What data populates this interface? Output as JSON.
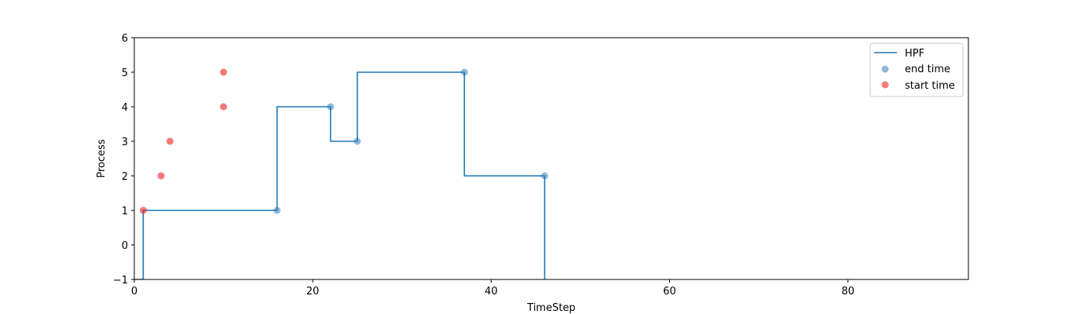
{
  "chart_data": {
    "type": "line",
    "xlabel": "TimeStep",
    "ylabel": "Process",
    "xlim": [
      0,
      93.5
    ],
    "ylim": [
      -1,
      6
    ],
    "xticks": [
      0,
      20,
      40,
      60,
      80
    ],
    "yticks": [
      -1,
      0,
      1,
      2,
      3,
      4,
      5,
      6
    ],
    "xtick_labels": [
      "0",
      "20",
      "40",
      "60",
      "80"
    ],
    "ytick_labels": [
      "−1",
      "0",
      "1",
      "2",
      "3",
      "4",
      "5",
      "6"
    ],
    "legend_position": "top-right",
    "grid": false,
    "series": [
      {
        "name": "HPF",
        "kind": "step",
        "color": "#1f77b4",
        "x": [
          0,
          1,
          1,
          16,
          16,
          22,
          22,
          25,
          25,
          37,
          37,
          46,
          46
        ],
        "y": [
          -1,
          -1,
          1,
          1,
          4,
          4,
          3,
          3,
          5,
          5,
          2,
          2,
          -1
        ]
      },
      {
        "name": "end time",
        "kind": "scatter",
        "color": "#1f77b4",
        "x": [
          16,
          22,
          25,
          37,
          46
        ],
        "y": [
          1,
          4,
          3,
          5,
          2
        ]
      },
      {
        "name": "start time",
        "kind": "scatter",
        "color": "#ee2222",
        "x": [
          1,
          3,
          4,
          10,
          10
        ],
        "y": [
          1,
          2,
          3,
          4,
          5
        ]
      }
    ]
  }
}
